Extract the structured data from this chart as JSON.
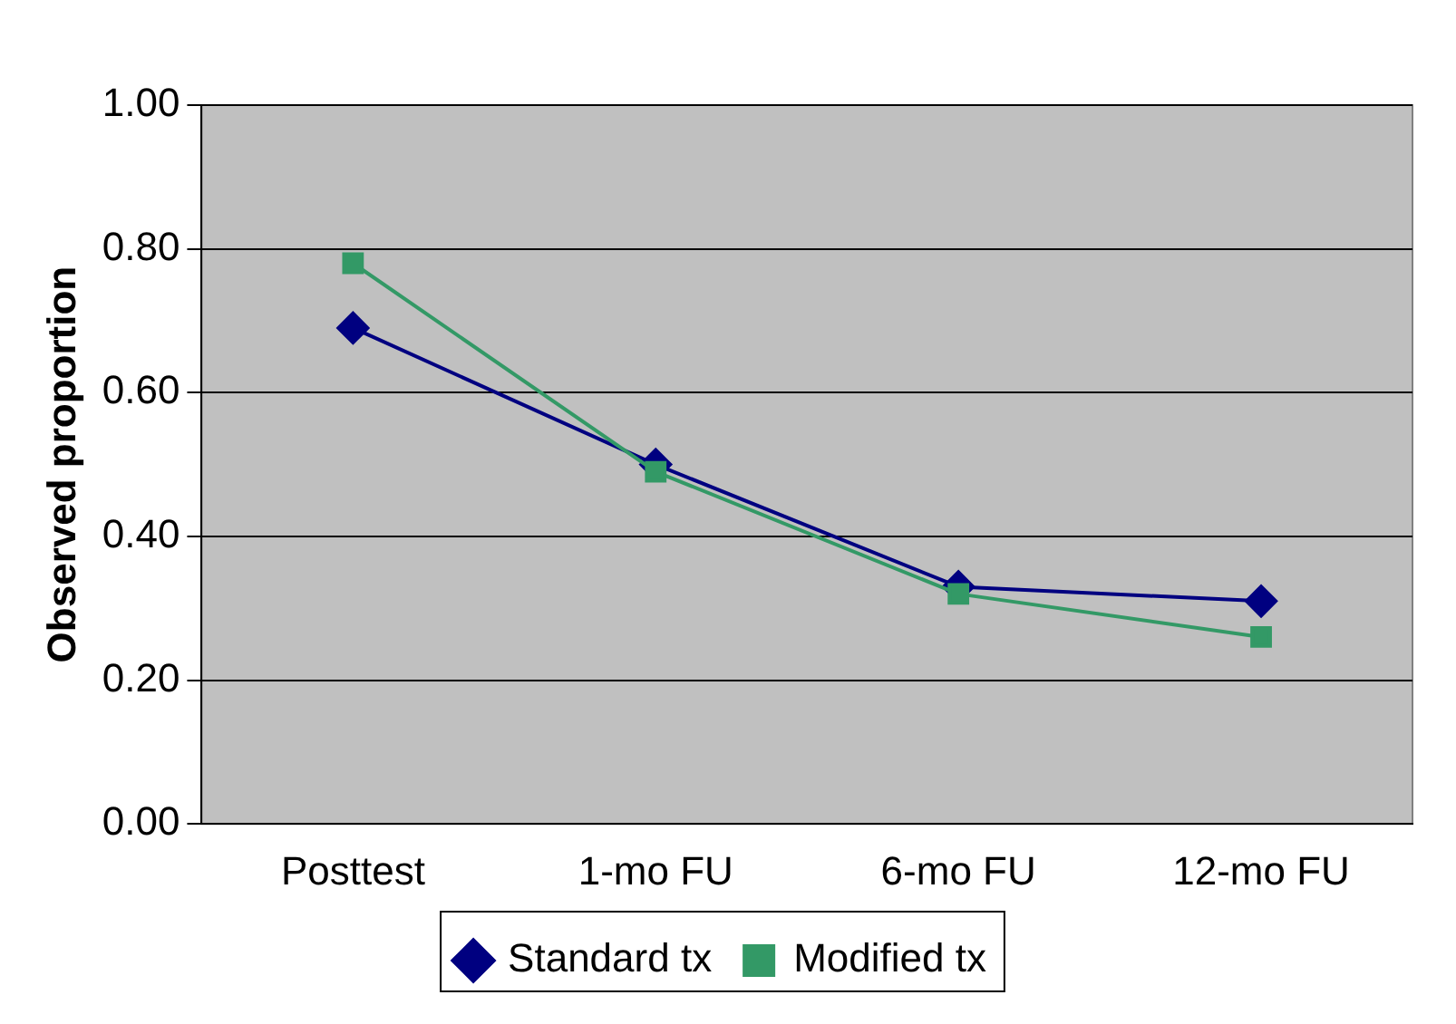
{
  "chart_data": {
    "type": "line",
    "ylabel": "Observed proportion",
    "categories": [
      "Posttest",
      "1-mo FU",
      "6-mo FU",
      "12-mo FU"
    ],
    "series": [
      {
        "name": "Standard tx",
        "color": "#000080",
        "marker": "diamond",
        "values": [
          0.69,
          0.5,
          0.33,
          0.31
        ]
      },
      {
        "name": "Modified tx",
        "color": "#339966",
        "marker": "square",
        "values": [
          0.78,
          0.49,
          0.32,
          0.26
        ]
      }
    ],
    "ylim": [
      0,
      1
    ],
    "yticks": [
      {
        "value": 0,
        "label": "0.00"
      },
      {
        "value": 0.2,
        "label": "0.20"
      },
      {
        "value": 0.4,
        "label": "0.40"
      },
      {
        "value": 0.6,
        "label": "0.60"
      },
      {
        "value": 0.8,
        "label": "0.80"
      },
      {
        "value": 1,
        "label": "1.00"
      }
    ],
    "grid": "y",
    "legend": "bottom"
  }
}
